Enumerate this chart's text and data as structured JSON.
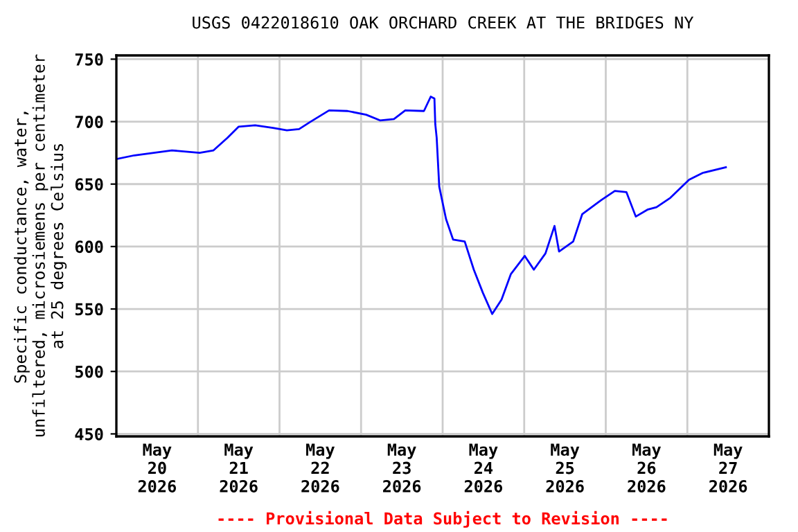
{
  "chart_data": {
    "type": "line",
    "title": "USGS 0422018610 OAK ORCHARD CREEK AT THE BRIDGES NY",
    "ylabel": "Specific conductance, water,\nunfiltered, microsiemens per centimeter\nat 25 degrees Celsius",
    "annotations": [
      "---- Provisional Data Subject to Revision ----"
    ],
    "series": [
      {
        "color": "#0000ff",
        "x": [
          "2026-05-20T00:00",
          "2026-05-20T05:18",
          "2026-05-20T16:20",
          "2026-05-21T00:30",
          "2026-05-21T04:35",
          "2026-05-21T08:40",
          "2026-05-21T12:00",
          "2026-05-21T16:50",
          "2026-05-21T22:05",
          "2026-05-22T02:10",
          "2026-05-22T05:45",
          "2026-05-22T09:10",
          "2026-05-22T14:35",
          "2026-05-22T20:00",
          "2026-05-23T01:30",
          "2026-05-23T05:35",
          "2026-05-23T09:40",
          "2026-05-23T13:00",
          "2026-05-23T18:30",
          "2026-05-23T20:30",
          "2026-05-23T21:35",
          "2026-05-23T21:50",
          "2026-05-23T22:15",
          "2026-05-23T23:00",
          "2026-05-24T01:00",
          "2026-05-24T03:05",
          "2026-05-24T06:30",
          "2026-05-24T09:10",
          "2026-05-24T11:50",
          "2026-05-24T14:35",
          "2026-05-24T17:20",
          "2026-05-24T20:05",
          "2026-05-25T00:10",
          "2026-05-25T02:50",
          "2026-05-25T06:15",
          "2026-05-25T08:55",
          "2026-05-25T10:15",
          "2026-05-25T14:25",
          "2026-05-25T17:05",
          "2026-05-25T22:35",
          "2026-05-26T02:40",
          "2026-05-26T06:05",
          "2026-05-26T08:50",
          "2026-05-26T12:15",
          "2026-05-26T14:55",
          "2026-05-26T19:00",
          "2026-05-27T00:30",
          "2026-05-27T04:35",
          "2026-05-27T11:20"
        ],
        "values": [
          670,
          673,
          677,
          675,
          677,
          687,
          696,
          697,
          695,
          693,
          694,
          700,
          709,
          708.5,
          705.5,
          701,
          702,
          709,
          708.5,
          720,
          718.5,
          698,
          687,
          648,
          622,
          605.5,
          604,
          581.5,
          563,
          546,
          557.5,
          578,
          592.5,
          581.5,
          594.5,
          616.5,
          596,
          604,
          626,
          637,
          644.5,
          643.5,
          624,
          629.5,
          631.5,
          639,
          653.5,
          659,
          663.5
        ]
      }
    ],
    "xlim": [
      "2026-05-20T00:00",
      "2026-05-28T00:00"
    ],
    "xticks": [
      {
        "value": "2026-05-20T12:00",
        "label": "May\n20\n2026"
      },
      {
        "value": "2026-05-21T12:00",
        "label": "May\n21\n2026"
      },
      {
        "value": "2026-05-22T12:00",
        "label": "May\n22\n2026"
      },
      {
        "value": "2026-05-23T12:00",
        "label": "May\n23\n2026"
      },
      {
        "value": "2026-05-24T12:00",
        "label": "May\n24\n2026"
      },
      {
        "value": "2026-05-25T12:00",
        "label": "May\n25\n2026"
      },
      {
        "value": "2026-05-26T12:00",
        "label": "May\n26\n2026"
      },
      {
        "value": "2026-05-27T12:00",
        "label": "May\n27\n2026"
      },
      {
        "value": "2026-05-21",
        "label": null
      },
      {
        "value": "2026-05-22",
        "label": null
      },
      {
        "value": "2026-05-23",
        "label": null
      },
      {
        "value": "2026-05-24",
        "label": null
      },
      {
        "value": "2026-05-25",
        "label": null
      },
      {
        "value": "2026-05-26",
        "label": null
      },
      {
        "value": "2026-05-27",
        "label": null
      }
    ],
    "ylim": [
      448,
      753
    ],
    "yticks": [
      450,
      500,
      550,
      600,
      650,
      700,
      750
    ],
    "grid": true,
    "legend": false
  }
}
